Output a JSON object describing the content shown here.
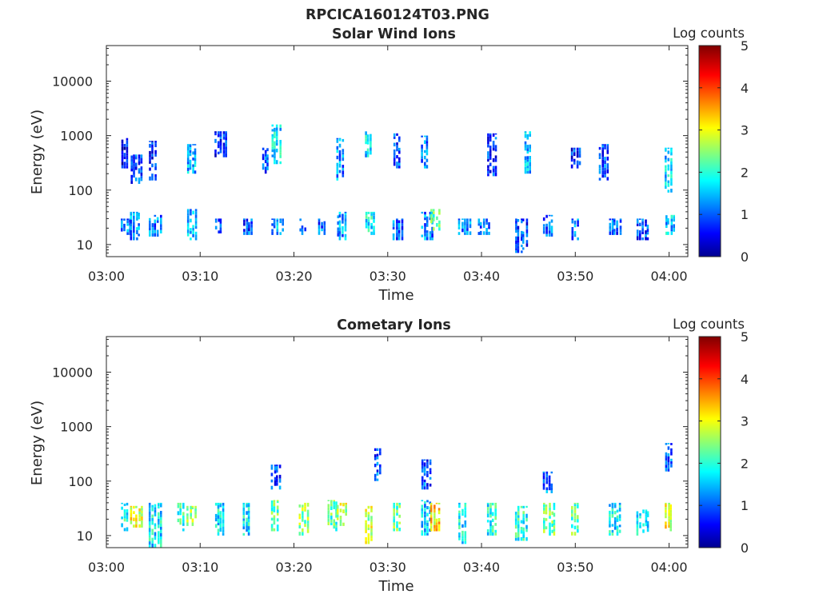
{
  "page_title": "RPCICA160124T03.PNG",
  "chart_data": [
    {
      "type": "heatmap",
      "title": "Solar Wind Ions",
      "xlabel": "Time",
      "ylabel": "Energy (eV)",
      "x_scale": "time",
      "x_range": [
        "03:00",
        "04:02"
      ],
      "x_ticks": [
        "03:00",
        "03:10",
        "03:20",
        "03:30",
        "03:40",
        "03:50",
        "04:00"
      ],
      "y_scale": "log",
      "y_range": [
        6,
        45000
      ],
      "y_ticks": [
        "10",
        "100",
        "1000",
        "10000"
      ],
      "y_tick_values": [
        10,
        100,
        1000,
        10000
      ],
      "colorbar": {
        "label": "Log counts",
        "range": [
          0,
          5
        ],
        "ticks": [
          "0",
          "1",
          "2",
          "3",
          "4",
          "5"
        ],
        "colormap": "jet"
      },
      "grid": false,
      "bursts": [
        {
          "t": "03:02",
          "e_min": 15,
          "e_max": 30,
          "level": 1.2
        },
        {
          "t": "03:02",
          "e_min": 250,
          "e_max": 900,
          "level": 0.6
        },
        {
          "t": "03:03",
          "e_min": 12,
          "e_max": 40,
          "level": 1.3
        },
        {
          "t": "03:03",
          "e_min": 130,
          "e_max": 450,
          "level": 0.9
        },
        {
          "t": "03:05",
          "e_min": 14,
          "e_max": 35,
          "level": 1.2
        },
        {
          "t": "03:05",
          "e_min": 150,
          "e_max": 800,
          "level": 0.7
        },
        {
          "t": "03:09",
          "e_min": 12,
          "e_max": 45,
          "level": 1.4
        },
        {
          "t": "03:09",
          "e_min": 200,
          "e_max": 700,
          "level": 1.5
        },
        {
          "t": "03:12",
          "e_min": 16,
          "e_max": 30,
          "level": 1.2
        },
        {
          "t": "03:12",
          "e_min": 400,
          "e_max": 1200,
          "level": 0.8
        },
        {
          "t": "03:15",
          "e_min": 15,
          "e_max": 30,
          "level": 1.0
        },
        {
          "t": "03:17",
          "e_min": 200,
          "e_max": 600,
          "level": 1.0
        },
        {
          "t": "03:18",
          "e_min": 15,
          "e_max": 30,
          "level": 1.5
        },
        {
          "t": "03:18",
          "e_min": 300,
          "e_max": 1600,
          "level": 1.8
        },
        {
          "t": "03:21",
          "e_min": 15,
          "e_max": 30,
          "level": 1.1
        },
        {
          "t": "03:23",
          "e_min": 15,
          "e_max": 30,
          "level": 1.1
        },
        {
          "t": "03:25",
          "e_min": 12,
          "e_max": 40,
          "level": 1.4
        },
        {
          "t": "03:25",
          "e_min": 150,
          "e_max": 900,
          "level": 1.3
        },
        {
          "t": "03:28",
          "e_min": 15,
          "e_max": 40,
          "level": 1.8
        },
        {
          "t": "03:28",
          "e_min": 400,
          "e_max": 1200,
          "level": 1.7
        },
        {
          "t": "03:31",
          "e_min": 12,
          "e_max": 30,
          "level": 1.1
        },
        {
          "t": "03:31",
          "e_min": 250,
          "e_max": 1100,
          "level": 1.0
        },
        {
          "t": "03:34",
          "e_min": 12,
          "e_max": 40,
          "level": 1.2
        },
        {
          "t": "03:34",
          "e_min": 250,
          "e_max": 1000,
          "level": 1.2
        },
        {
          "t": "03:35",
          "e_min": 18,
          "e_max": 45,
          "level": 2.2
        },
        {
          "t": "03:38",
          "e_min": 15,
          "e_max": 30,
          "level": 1.2
        },
        {
          "t": "03:40",
          "e_min": 15,
          "e_max": 30,
          "level": 1.0
        },
        {
          "t": "03:41",
          "e_min": 180,
          "e_max": 1100,
          "level": 0.9
        },
        {
          "t": "03:44",
          "e_min": 7,
          "e_max": 30,
          "level": 0.9
        },
        {
          "t": "03:45",
          "e_min": 200,
          "e_max": 1200,
          "level": 1.5
        },
        {
          "t": "03:47",
          "e_min": 14,
          "e_max": 35,
          "level": 1.1
        },
        {
          "t": "03:50",
          "e_min": 12,
          "e_max": 30,
          "level": 1.2
        },
        {
          "t": "03:50",
          "e_min": 250,
          "e_max": 600,
          "level": 0.8
        },
        {
          "t": "03:53",
          "e_min": 150,
          "e_max": 700,
          "level": 1.0
        },
        {
          "t": "03:54",
          "e_min": 15,
          "e_max": 30,
          "level": 1.0
        },
        {
          "t": "03:57",
          "e_min": 12,
          "e_max": 30,
          "level": 0.9
        },
        {
          "t": "04:00",
          "e_min": 15,
          "e_max": 35,
          "level": 1.6
        },
        {
          "t": "04:00",
          "e_min": 90,
          "e_max": 600,
          "level": 1.7
        }
      ]
    },
    {
      "type": "heatmap",
      "title": "Cometary Ions",
      "xlabel": "Time",
      "ylabel": "Energy (eV)",
      "x_scale": "time",
      "x_range": [
        "03:00",
        "04:02"
      ],
      "x_ticks": [
        "03:00",
        "03:10",
        "03:20",
        "03:30",
        "03:40",
        "03:50",
        "04:00"
      ],
      "y_scale": "log",
      "y_range": [
        6,
        45000
      ],
      "y_ticks": [
        "10",
        "100",
        "1000",
        "10000"
      ],
      "y_tick_values": [
        10,
        100,
        1000,
        10000
      ],
      "colorbar": {
        "label": "Log counts",
        "range": [
          0,
          5
        ],
        "ticks": [
          "0",
          "1",
          "2",
          "3",
          "4",
          "5"
        ],
        "colormap": "jet"
      },
      "grid": false,
      "bursts": [
        {
          "t": "03:02",
          "e_min": 12,
          "e_max": 40,
          "level": 2.0
        },
        {
          "t": "03:03",
          "e_min": 14,
          "e_max": 35,
          "level": 3.0
        },
        {
          "t": "03:05",
          "e_min": 6,
          "e_max": 40,
          "level": 1.8
        },
        {
          "t": "03:08",
          "e_min": 12,
          "e_max": 40,
          "level": 2.0
        },
        {
          "t": "03:09",
          "e_min": 15,
          "e_max": 35,
          "level": 2.6
        },
        {
          "t": "03:12",
          "e_min": 10,
          "e_max": 40,
          "level": 1.8
        },
        {
          "t": "03:15",
          "e_min": 10,
          "e_max": 40,
          "level": 1.8
        },
        {
          "t": "03:18",
          "e_min": 12,
          "e_max": 45,
          "level": 2.3
        },
        {
          "t": "03:18",
          "e_min": 70,
          "e_max": 200,
          "level": 1.0
        },
        {
          "t": "03:21",
          "e_min": 10,
          "e_max": 40,
          "level": 2.6
        },
        {
          "t": "03:24",
          "e_min": 12,
          "e_max": 45,
          "level": 2.3
        },
        {
          "t": "03:25",
          "e_min": 15,
          "e_max": 40,
          "level": 2.8
        },
        {
          "t": "03:28",
          "e_min": 7,
          "e_max": 35,
          "level": 2.8
        },
        {
          "t": "03:29",
          "e_min": 100,
          "e_max": 400,
          "level": 1.0
        },
        {
          "t": "03:31",
          "e_min": 12,
          "e_max": 40,
          "level": 2.4
        },
        {
          "t": "03:34",
          "e_min": 10,
          "e_max": 45,
          "level": 1.6
        },
        {
          "t": "03:35",
          "e_min": 12,
          "e_max": 40,
          "level": 3.2
        },
        {
          "t": "03:34",
          "e_min": 70,
          "e_max": 250,
          "level": 1.0
        },
        {
          "t": "03:38",
          "e_min": 7,
          "e_max": 40,
          "level": 1.8
        },
        {
          "t": "03:41",
          "e_min": 10,
          "e_max": 40,
          "level": 2.0
        },
        {
          "t": "03:44",
          "e_min": 8,
          "e_max": 35,
          "level": 2.0
        },
        {
          "t": "03:47",
          "e_min": 10,
          "e_max": 40,
          "level": 2.4
        },
        {
          "t": "03:47",
          "e_min": 60,
          "e_max": 150,
          "level": 1.2
        },
        {
          "t": "03:50",
          "e_min": 10,
          "e_max": 40,
          "level": 2.3
        },
        {
          "t": "03:54",
          "e_min": 10,
          "e_max": 40,
          "level": 1.8
        },
        {
          "t": "03:57",
          "e_min": 10,
          "e_max": 30,
          "level": 1.7
        },
        {
          "t": "04:00",
          "e_min": 12,
          "e_max": 40,
          "level": 3.0
        },
        {
          "t": "04:00",
          "e_min": 150,
          "e_max": 500,
          "level": 1.1
        }
      ]
    }
  ]
}
